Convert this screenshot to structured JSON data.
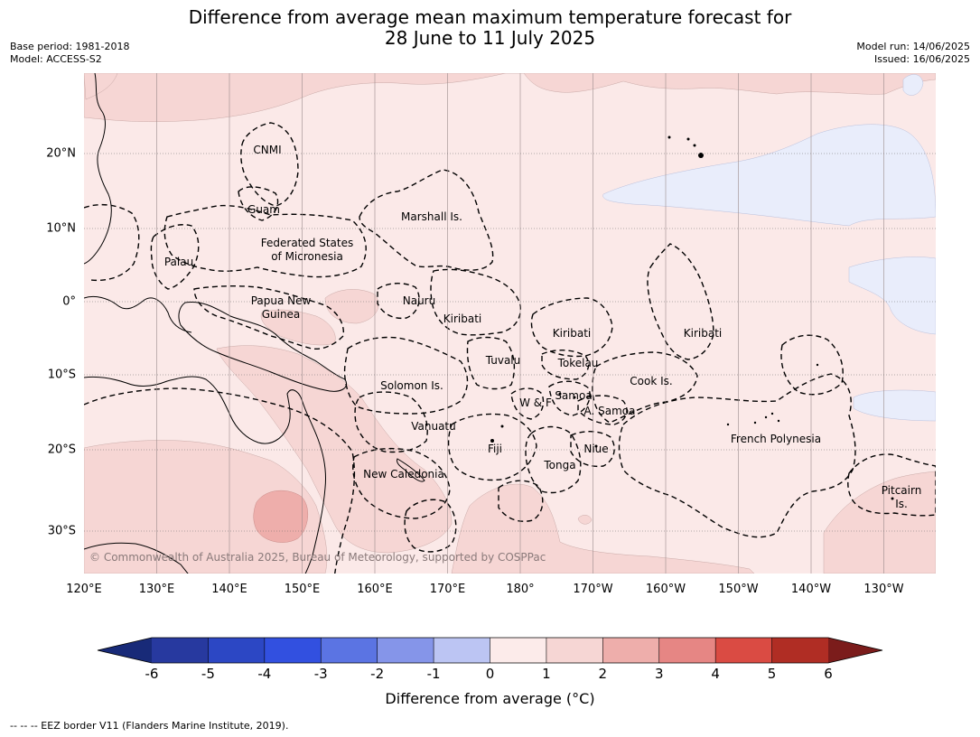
{
  "header": {
    "title_line1": "Difference from average mean maximum temperature forecast for",
    "title_line2": "28 June to 11 July 2025",
    "base_period": "Base period: 1981-2018",
    "model": "Model: ACCESS-S2",
    "model_run": "Model run: 14/06/2025",
    "issued": "Issued: 16/06/2025"
  },
  "map": {
    "copyright": "© Commonwealth of Australia 2025, Bureau of Meteorology, supported by COSPPac",
    "lon_labels": [
      "120°E",
      "130°E",
      "140°E",
      "150°E",
      "160°E",
      "170°E",
      "180°",
      "170°W",
      "160°W",
      "150°W",
      "140°W",
      "130°W"
    ],
    "lat_labels": [
      "20°N",
      "10°N",
      "0°",
      "10°S",
      "20°S",
      "30°S"
    ],
    "regions": [
      {
        "name": "CNMI"
      },
      {
        "name": "Guam"
      },
      {
        "name": "Marshall Is."
      },
      {
        "name": "Federated States"
      },
      {
        "name": "of Micronesia"
      },
      {
        "name": "Palau"
      },
      {
        "name": "Papua New"
      },
      {
        "name": "Guinea"
      },
      {
        "name": "Nauru"
      },
      {
        "name": "Kiribati"
      },
      {
        "name": "Kiribati"
      },
      {
        "name": "Kiribati"
      },
      {
        "name": "Tuvalu"
      },
      {
        "name": "Tokelau"
      },
      {
        "name": "Cook Is."
      },
      {
        "name": "Solomon Is."
      },
      {
        "name": "Samoa"
      },
      {
        "name": "W & F"
      },
      {
        "name": "A. Samoa"
      },
      {
        "name": "Vanuatu"
      },
      {
        "name": "Fiji"
      },
      {
        "name": "Niue"
      },
      {
        "name": "French Polynesia"
      },
      {
        "name": "Tonga"
      },
      {
        "name": "New Caledonia"
      },
      {
        "name": "Pitcairn"
      },
      {
        "name": "Is."
      }
    ],
    "anomaly_colors": {
      "range_0_1": "#fbe9e8",
      "range_1_2": "#f6d6d4",
      "range_2_3": "#eeaeab",
      "range_minus1_0": "#e9edfb"
    }
  },
  "colorbar": {
    "ticks": [
      "-6",
      "-5",
      "-4",
      "-3",
      "-2",
      "-1",
      "0",
      "1",
      "2",
      "3",
      "4",
      "5",
      "6"
    ],
    "colors": [
      "#27399f",
      "#2c47c4",
      "#3250e0",
      "#5b74e3",
      "#8595e9",
      "#bcc5f3",
      "#e8ecfc",
      "#fcebea",
      "#f6d6d4",
      "#eeaeab",
      "#e68684",
      "#da4b43",
      "#b02d24"
    ],
    "extend_low_color": "#182a78",
    "extend_high_color": "#7b1c1b",
    "label": "Difference from average (°C)"
  },
  "footnote": "--  --  -- EEZ border V11 (Flanders Marine Institute, 2019)."
}
